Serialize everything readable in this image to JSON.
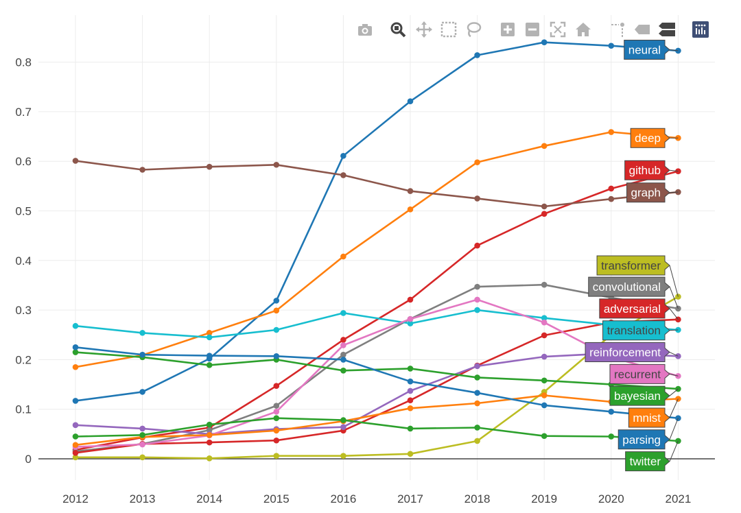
{
  "modebar": [
    {
      "name": "camera-icon",
      "left": 4
    },
    {
      "name": "zoom-icon",
      "left": 52
    },
    {
      "name": "pan-icon",
      "left": 90
    },
    {
      "name": "box-select-icon",
      "left": 126
    },
    {
      "name": "lasso-select-icon",
      "left": 162
    },
    {
      "name": "zoom-in-icon",
      "left": 212
    },
    {
      "name": "zoom-out-icon",
      "left": 248
    },
    {
      "name": "autoscale-icon",
      "left": 285
    },
    {
      "name": "reset-axes-icon",
      "left": 322
    },
    {
      "name": "spike-lines-icon",
      "left": 372
    },
    {
      "name": "hover-closest-icon",
      "left": 408
    },
    {
      "name": "hover-compare-icon",
      "left": 444
    },
    {
      "name": "plotly-logo-icon",
      "left": 493
    }
  ],
  "chart_data": {
    "type": "line",
    "x": [
      2012,
      2013,
      2014,
      2015,
      2016,
      2017,
      2018,
      2019,
      2020,
      2021
    ],
    "xticks": [
      "2012",
      "2013",
      "2014",
      "2015",
      "2016",
      "2017",
      "2018",
      "2019",
      "2020",
      "2021"
    ],
    "ylim": [
      -0.06,
      0.88
    ],
    "yticks": [
      0,
      0.1,
      0.2,
      0.3,
      0.4,
      0.5,
      0.6,
      0.7,
      0.8
    ],
    "yticklabels": [
      "0",
      "0.1",
      "0.2",
      "0.3",
      "0.4",
      "0.5",
      "0.6",
      "0.7",
      "0.8"
    ],
    "grid": true,
    "series": [
      {
        "name": "neural",
        "color": "#1f77b4",
        "label_y": 0.825,
        "values": [
          0.117,
          0.135,
          0.202,
          0.319,
          0.611,
          0.721,
          0.814,
          0.84,
          0.833,
          0.823
        ]
      },
      {
        "name": "deep",
        "color": "#ff7f0e",
        "label_y": 0.647,
        "values": [
          0.185,
          0.209,
          0.254,
          0.299,
          0.408,
          0.503,
          0.598,
          0.631,
          0.659,
          0.647
        ]
      },
      {
        "name": "github",
        "color": "#d62728",
        "label_y": 0.582,
        "values": [
          0.018,
          0.043,
          0.063,
          0.147,
          0.24,
          0.321,
          0.43,
          0.494,
          0.545,
          0.58
        ]
      },
      {
        "name": "graph",
        "color": "#8c564b",
        "label_y": 0.537,
        "values": [
          0.601,
          0.583,
          0.589,
          0.593,
          0.572,
          0.54,
          0.525,
          0.509,
          0.524,
          0.538
        ]
      },
      {
        "name": "transformer",
        "color": "#bcbd22",
        "label_y": 0.39,
        "values": [
          0.003,
          0.003,
          0.001,
          0.006,
          0.006,
          0.01,
          0.036,
          0.135,
          0.25,
          0.327
        ]
      },
      {
        "name": "convolutional",
        "color": "#7f7f7f",
        "label_y": 0.347,
        "values": [
          0.015,
          0.03,
          0.058,
          0.107,
          0.21,
          0.282,
          0.347,
          0.351,
          0.325,
          0.303
        ]
      },
      {
        "name": "adversarial",
        "color": "#d62728",
        "label_y": 0.303,
        "values": [
          0.012,
          0.03,
          0.033,
          0.037,
          0.057,
          0.118,
          0.188,
          0.249,
          0.275,
          0.281
        ]
      },
      {
        "name": "translation",
        "color": "#17becf",
        "label_y": 0.259,
        "values": [
          0.268,
          0.254,
          0.245,
          0.26,
          0.294,
          0.273,
          0.3,
          0.284,
          0.27,
          0.26
        ]
      },
      {
        "name": "reinforcement",
        "color": "#9467bd",
        "label_y": 0.215,
        "values": [
          0.068,
          0.061,
          0.05,
          0.06,
          0.064,
          0.137,
          0.187,
          0.206,
          0.213,
          0.207
        ]
      },
      {
        "name": "recurrent",
        "color": "#e377c2",
        "label_y": 0.171,
        "values": [
          0.024,
          0.029,
          0.047,
          0.095,
          0.229,
          0.282,
          0.321,
          0.275,
          0.205,
          0.167
        ]
      },
      {
        "name": "bayesian",
        "color": "#2ca02c",
        "label_y": 0.127,
        "values": [
          0.215,
          0.205,
          0.189,
          0.2,
          0.178,
          0.182,
          0.164,
          0.158,
          0.15,
          0.141
        ]
      },
      {
        "name": "mnist",
        "color": "#ff7f0e",
        "label_y": 0.083,
        "values": [
          0.028,
          0.044,
          0.048,
          0.057,
          0.076,
          0.102,
          0.112,
          0.128,
          0.115,
          0.121
        ]
      },
      {
        "name": "parsing",
        "color": "#1f77b4",
        "label_y": 0.039,
        "values": [
          0.225,
          0.21,
          0.208,
          0.207,
          0.2,
          0.156,
          0.133,
          0.108,
          0.095,
          0.082
        ]
      },
      {
        "name": "twitter",
        "color": "#2ca02c",
        "label_y": -0.005,
        "values": [
          0.045,
          0.048,
          0.069,
          0.082,
          0.078,
          0.061,
          0.063,
          0.046,
          0.045,
          0.036
        ]
      }
    ]
  }
}
